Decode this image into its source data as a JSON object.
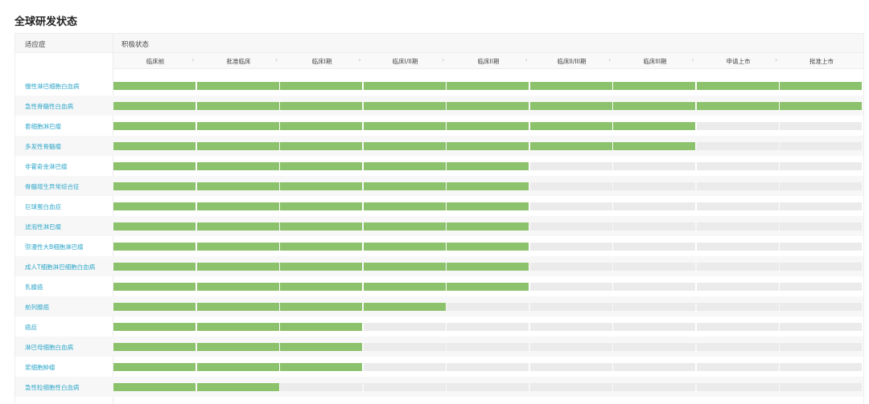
{
  "page_title": "全球研发状态",
  "table": {
    "col_indication": "适应症",
    "col_status": "积极状态",
    "stages": [
      "临床前",
      "批准临床",
      "临床I期",
      "临床I/II期",
      "临床II期",
      "临床II/III期",
      "临床III期",
      "申请上市",
      "批准上市"
    ],
    "stage_separator": "›",
    "rows": [
      {
        "label": "慢性淋巴细胞白血病",
        "filled": 9
      },
      {
        "label": "急性骨髓性白血病",
        "filled": 9
      },
      {
        "label": "套细胞淋巴瘤",
        "filled": 7
      },
      {
        "label": "多发性骨髓瘤",
        "filled": 7
      },
      {
        "label": "非霍奇金淋巴瘤",
        "filled": 5
      },
      {
        "label": "骨髓增生异常综合征",
        "filled": 5
      },
      {
        "label": "巨球蛋白血症",
        "filled": 5
      },
      {
        "label": "滤泡性淋巴瘤",
        "filled": 5
      },
      {
        "label": "弥漫性大B细胞淋巴瘤",
        "filled": 5
      },
      {
        "label": "成人T细胞淋巴细胞白血病",
        "filled": 5
      },
      {
        "label": "乳腺癌",
        "filled": 5
      },
      {
        "label": "前列腺癌",
        "filled": 4
      },
      {
        "label": "癌症",
        "filled": 3
      },
      {
        "label": "淋巴母细胞白血病",
        "filled": 3
      },
      {
        "label": "浆细胞肿瘤",
        "filled": 3
      },
      {
        "label": "急性粒细胞性白血病",
        "filled": 2
      }
    ]
  },
  "colors": {
    "progress_on": "#8cc26b",
    "progress_off": "#ebebeb",
    "link": "#2fa7c9"
  }
}
